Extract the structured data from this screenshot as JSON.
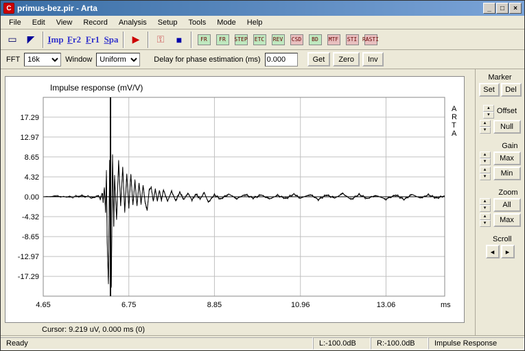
{
  "window": {
    "title": "primus-bez.pir - Arta",
    "app_icon_letter": "C"
  },
  "menu": [
    "File",
    "Edit",
    "View",
    "Record",
    "Analysis",
    "Setup",
    "Tools",
    "Mode",
    "Help"
  ],
  "toolbar1": {
    "groups": [
      [
        {
          "name": "new",
          "glyph": "▭",
          "color": "#006"
        },
        {
          "name": "flag",
          "glyph": "◤",
          "color": "#009"
        }
      ],
      [
        {
          "name": "imp",
          "text": "Imp"
        },
        {
          "name": "fr2",
          "text": "Fr2"
        },
        {
          "name": "fr1",
          "text": "Fr1"
        },
        {
          "name": "spa",
          "text": "Spa"
        }
      ],
      [
        {
          "name": "play",
          "glyph": "▶",
          "color": "#c00"
        }
      ],
      [
        {
          "name": "key",
          "glyph": "⚿",
          "color": "#c55"
        },
        {
          "name": "panel",
          "glyph": "■",
          "color": "#00a"
        }
      ],
      [
        {
          "name": "fr-a",
          "text": "FR",
          "bg": "#bfe8bf"
        },
        {
          "name": "fr-b",
          "text": "FR",
          "bg": "#bfe8bf"
        },
        {
          "name": "step",
          "text": "STEP",
          "bg": "#bfe8bf"
        },
        {
          "name": "etc",
          "text": "ETC",
          "bg": "#bfe8bf"
        },
        {
          "name": "rev",
          "text": "REV",
          "bg": "#bfe8bf"
        },
        {
          "name": "csd",
          "text": "CSD",
          "bg": "#e8bfbf"
        },
        {
          "name": "bd",
          "text": "BD",
          "bg": "#bfe8bf"
        },
        {
          "name": "mtf",
          "text": "MTF",
          "bg": "#e8bfbf"
        },
        {
          "name": "sti",
          "text": "STI",
          "bg": "#e8bfbf"
        },
        {
          "name": "rasti",
          "text": "RASTI",
          "bg": "#e8bfbf"
        }
      ]
    ]
  },
  "toolbar2": {
    "fft_label": "FFT",
    "fft_value": "16k",
    "window_label": "Window",
    "window_value": "Uniform",
    "delay_label": "Delay for phase estimation (ms)",
    "delay_value": "0.000",
    "get": "Get",
    "zero": "Zero",
    "inv": "Inv"
  },
  "chart": {
    "type": "line",
    "title": "Impulse response (mV/V)",
    "right_label": "ARTA",
    "cursor_text": "Cursor:  9.219 uV,   0.000 ms   (0)",
    "x_unit": "ms",
    "background": "#ffffff",
    "grid_color": "#c0c0c0",
    "line_color": "#000000",
    "title_fontsize": 12,
    "axis_fontsize": 11,
    "xlim": [
      4.65,
      14.5
    ],
    "ylim": [
      -21.6,
      21.6
    ],
    "xticks": [
      4.65,
      6.75,
      8.85,
      10.96,
      13.06
    ],
    "yticks": [
      -17.29,
      -12.97,
      -8.65,
      -4.32,
      0.0,
      4.32,
      8.65,
      12.97,
      17.29
    ],
    "cursor_x": 6.3,
    "series": [
      [
        4.65,
        0.0
      ],
      [
        5.0,
        0.1
      ],
      [
        5.3,
        -0.1
      ],
      [
        5.6,
        0.2
      ],
      [
        5.9,
        -0.2
      ],
      [
        6.0,
        0.3
      ],
      [
        6.05,
        -0.5
      ],
      [
        6.1,
        0.8
      ],
      [
        6.12,
        -1.2
      ],
      [
        6.15,
        2.0
      ],
      [
        6.18,
        -3.5
      ],
      [
        6.2,
        5.5
      ],
      [
        6.22,
        -10.0
      ],
      [
        6.25,
        -19.0
      ],
      [
        6.28,
        8.0
      ],
      [
        6.3,
        -17.5
      ],
      [
        6.32,
        -19.5
      ],
      [
        6.35,
        9.2
      ],
      [
        6.38,
        -6.5
      ],
      [
        6.4,
        4.5
      ],
      [
        6.45,
        -5.0
      ],
      [
        6.5,
        7.8
      ],
      [
        6.55,
        -2.0
      ],
      [
        6.6,
        6.5
      ],
      [
        6.65,
        -3.2
      ],
      [
        6.7,
        5.0
      ],
      [
        6.75,
        -2.5
      ],
      [
        6.8,
        4.8
      ],
      [
        6.85,
        -1.8
      ],
      [
        6.9,
        3.5
      ],
      [
        6.95,
        -2.0
      ],
      [
        7.0,
        3.0
      ],
      [
        7.05,
        -1.5
      ],
      [
        7.1,
        2.5
      ],
      [
        7.15,
        -1.2
      ],
      [
        7.2,
        -3.0
      ],
      [
        7.25,
        1.5
      ],
      [
        7.3,
        2.0
      ],
      [
        7.35,
        -1.0
      ],
      [
        7.4,
        1.7
      ],
      [
        7.45,
        -0.9
      ],
      [
        7.5,
        1.4
      ],
      [
        7.55,
        -0.8
      ],
      [
        7.6,
        1.5
      ],
      [
        7.7,
        -1.0
      ],
      [
        7.8,
        1.2
      ],
      [
        7.9,
        -0.9
      ],
      [
        8.0,
        1.0
      ],
      [
        8.1,
        -0.6
      ],
      [
        8.2,
        0.8
      ],
      [
        8.3,
        -0.7
      ],
      [
        8.4,
        0.6
      ],
      [
        8.5,
        -0.5
      ],
      [
        8.6,
        0.9
      ],
      [
        8.7,
        -1.2
      ],
      [
        8.85,
        0.4
      ],
      [
        9.0,
        -0.5
      ],
      [
        9.2,
        0.6
      ],
      [
        9.4,
        -0.4
      ],
      [
        9.6,
        0.5
      ],
      [
        9.8,
        -0.3
      ],
      [
        10.0,
        0.4
      ],
      [
        10.2,
        -0.5
      ],
      [
        10.4,
        0.3
      ],
      [
        10.6,
        -0.4
      ],
      [
        10.8,
        0.6
      ],
      [
        10.96,
        -0.3
      ],
      [
        11.2,
        0.5
      ],
      [
        11.4,
        -0.6
      ],
      [
        11.6,
        0.4
      ],
      [
        11.8,
        -0.3
      ],
      [
        12.0,
        0.7
      ],
      [
        12.2,
        -0.6
      ],
      [
        12.4,
        0.5
      ],
      [
        12.6,
        -0.4
      ],
      [
        12.8,
        0.3
      ],
      [
        13.06,
        -0.5
      ],
      [
        13.3,
        0.4
      ],
      [
        13.5,
        -0.6
      ],
      [
        13.7,
        0.5
      ],
      [
        13.9,
        -0.3
      ],
      [
        14.1,
        0.4
      ],
      [
        14.3,
        -0.3
      ],
      [
        14.5,
        0.2
      ]
    ]
  },
  "side": {
    "marker": "Marker",
    "set": "Set",
    "del": "Del",
    "offset": "Offset",
    "null": "Null",
    "gain": "Gain",
    "max": "Max",
    "min": "Min",
    "zoom": "Zoom",
    "all": "All",
    "scroll": "Scroll"
  },
  "status": {
    "ready": "Ready",
    "l": "L:-100.0dB",
    "r": "R:-100.0dB",
    "mode": "Impulse Response"
  }
}
